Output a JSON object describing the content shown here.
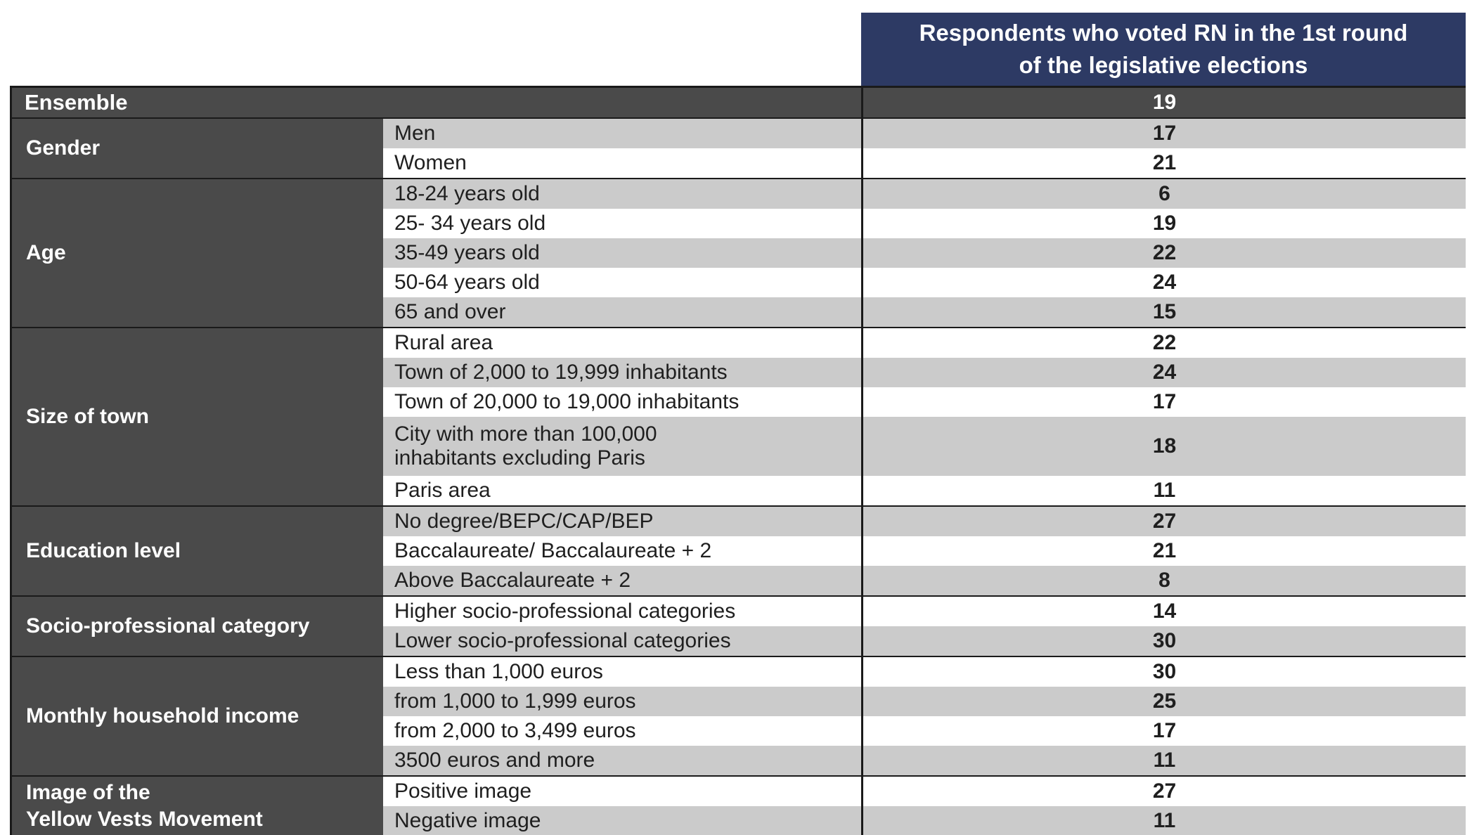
{
  "colors": {
    "navy": "#2d3a64",
    "dark_gray": "#4a4a4a",
    "row_gray": "#cbcbcb",
    "row_white": "#ffffff",
    "text_dark": "#1f1f1f",
    "border": "#1a1a1a"
  },
  "chart_data": {
    "type": "table",
    "title": "Respondents who voted RN in the 1st round\nof the legislative elections",
    "ensemble": {
      "label": "Ensemble",
      "value": 19
    },
    "groups": [
      {
        "category": "Gender",
        "rows": [
          {
            "label": "Men",
            "value": 17
          },
          {
            "label": "Women",
            "value": 21
          }
        ]
      },
      {
        "category": "Age",
        "rows": [
          {
            "label": "18-24 years old",
            "value": 6
          },
          {
            "label": "25- 34 years old",
            "value": 19
          },
          {
            "label": "35-49 years old",
            "value": 22
          },
          {
            "label": "50-64 years old",
            "value": 24
          },
          {
            "label": "65 and over",
            "value": 15
          }
        ]
      },
      {
        "category": "Size of town",
        "rows": [
          {
            "label": "Rural area",
            "value": 22
          },
          {
            "label": "Town of 2,000 to 19,999 inhabitants",
            "value": 24
          },
          {
            "label": "Town of 20,000 to 19,000 inhabitants",
            "value": 17
          },
          {
            "label": "City with more than 100,000\ninhabitants excluding Paris",
            "value": 18
          },
          {
            "label": "Paris area",
            "value": 11
          }
        ]
      },
      {
        "category": "Education level",
        "rows": [
          {
            "label": "No degree/BEPC/CAP/BEP",
            "value": 27
          },
          {
            "label": "Baccalaureate/ Baccalaureate + 2",
            "value": 21
          },
          {
            "label": "Above Baccalaureate + 2",
            "value": 8
          }
        ]
      },
      {
        "category": "Socio-professional category",
        "rows": [
          {
            "label": "Higher socio-professional categories",
            "value": 14
          },
          {
            "label": "Lower socio-professional categories",
            "value": 30
          }
        ]
      },
      {
        "category": "Monthly household income",
        "rows": [
          {
            "label": "Less than 1,000 euros",
            "value": 30
          },
          {
            "label": "from 1,000 to 1,999 euros",
            "value": 25
          },
          {
            "label": "from 2,000 to 3,499 euros",
            "value": 17
          },
          {
            "label": "3500 euros and more",
            "value": 11
          }
        ]
      },
      {
        "category": "Image of the\nYellow Vests Movement",
        "rows": [
          {
            "label": "Positive image",
            "value": 27
          },
          {
            "label": "Negative image",
            "value": 11
          }
        ]
      }
    ]
  }
}
